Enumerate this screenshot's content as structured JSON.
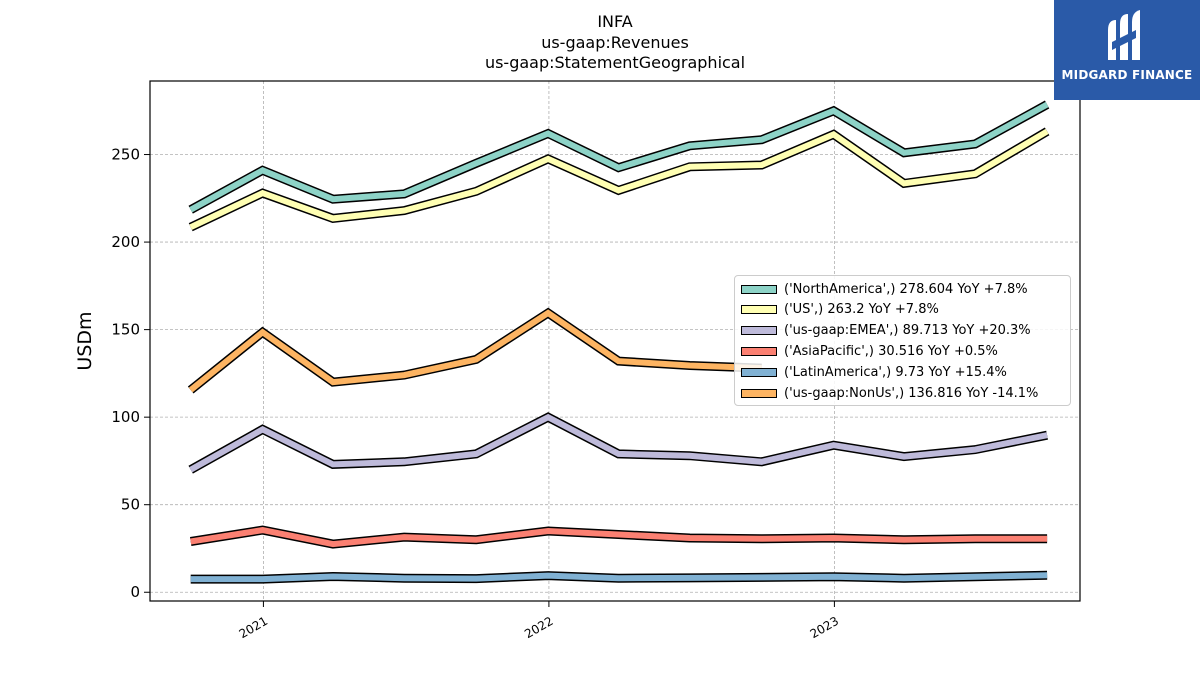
{
  "title_lines": [
    "INFA",
    "us-gaap:Revenues",
    "us-gaap:StatementGeographical"
  ],
  "logo": {
    "text": "MIDGARD FINANCE",
    "icon": "midgard-logo-icon",
    "color": "#2a5aa8"
  },
  "chart_data": {
    "type": "line",
    "ylabel": "USDm",
    "ylim": [
      -5,
      292
    ],
    "yticks": [
      0,
      50,
      100,
      150,
      200,
      250
    ],
    "x": [
      "2020-09-30",
      "2020-12-31",
      "2021-03-31",
      "2021-06-30",
      "2021-09-30",
      "2021-12-31",
      "2022-03-31",
      "2022-06-30",
      "2022-09-30",
      "2022-12-31",
      "2023-03-31",
      "2023-06-30",
      "2023-09-30"
    ],
    "xlim": [
      "2020-08-09",
      "2023-11-11"
    ],
    "xticks": [
      "2021",
      "2022",
      "2023"
    ],
    "grid": true,
    "legend_position": "center-right",
    "series": [
      {
        "name": "('NorthAmerica',) 278.604 YoY +7.8%",
        "color": "#8dd3c7",
        "values": [
          218.5,
          241,
          224.5,
          227.5,
          245,
          262,
          242.5,
          255,
          258.5,
          275,
          251,
          256,
          278.604
        ]
      },
      {
        "name": "('US',) 263.2 YoY +7.8%",
        "color": "#ffffb3",
        "values": [
          208.5,
          228,
          213.5,
          218,
          229,
          247.5,
          229.5,
          243,
          244,
          261.5,
          233.5,
          239,
          263.2
        ]
      },
      {
        "name": "('us-gaap:EMEA',) 89.713 YoY +20.3%",
        "color": "#bebada",
        "values": [
          70,
          93,
          73,
          74.5,
          79,
          100,
          79,
          78,
          74.5,
          84,
          77.5,
          81.5,
          89.713
        ]
      },
      {
        "name": "('AsiaPacific',) 30.516 YoY +0.5%",
        "color": "#fb8072",
        "values": [
          29,
          35.5,
          27.5,
          31.5,
          30,
          35,
          33,
          31,
          30.5,
          31,
          30,
          30.5,
          30.516
        ]
      },
      {
        "name": "('LatinAmerica',) 9.73 YoY +15.4%",
        "color": "#80b1d3",
        "values": [
          7.5,
          7.5,
          9,
          8,
          7.8,
          9.5,
          8,
          8.2,
          8.5,
          8.8,
          8,
          8.8,
          9.73
        ]
      },
      {
        "name": "('us-gaap:NonUs',) 136.816 YoY -14.1%",
        "color": "#fdb462",
        "values": [
          115.5,
          148.5,
          120,
          124,
          133,
          159.5,
          132,
          129.5,
          128,
          null,
          null,
          null,
          null
        ]
      }
    ]
  }
}
